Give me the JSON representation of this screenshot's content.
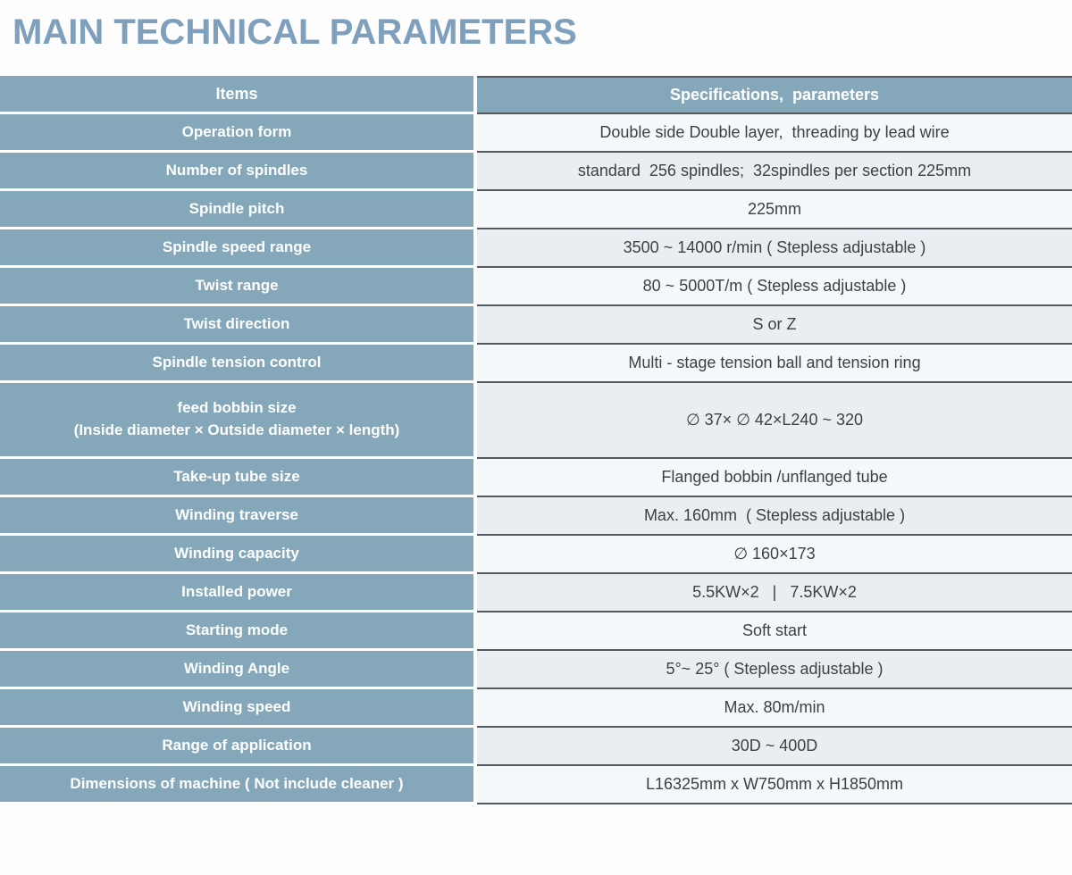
{
  "page": {
    "title": "MAIN TECHNICAL PARAMETERS"
  },
  "colors": {
    "title_text": "#7fa0bc",
    "header_cell_blue": "#84a8b9",
    "item_cell_blue": "#84a8b9",
    "value_row_light": "#f5f8fa",
    "value_row_dark": "#e8eef1",
    "dark_divider": "#53595e",
    "item_text": "#ffffff",
    "value_text": "#3c4146",
    "row_gap_white": "#ffffff"
  },
  "table": {
    "header": {
      "items": "Items",
      "specifications": "Specifications,  parameters"
    },
    "rows": [
      {
        "item": "Operation form",
        "value": "Double side Double layer,  threading by lead wire"
      },
      {
        "item": "Number of spindles",
        "value": "standard  256 spindles;  32spindles per section 225mm"
      },
      {
        "item": "Spindle pitch",
        "value": "225mm"
      },
      {
        "item": "Spindle speed range",
        "value": "3500 ~ 14000 r/min ( Stepless adjustable )"
      },
      {
        "item": "Twist range",
        "value": "80 ~ 5000T/m ( Stepless adjustable )"
      },
      {
        "item": "Twist direction",
        "value": "S or Z"
      },
      {
        "item": "Spindle tension control",
        "value": "Multi - stage tension ball and tension ring"
      },
      {
        "item": "feed bobbin size",
        "item_line2": "(Inside diameter × Outside diameter × length)",
        "value": "∅ 37× ∅ 42×L240 ~ 320",
        "tall": true
      },
      {
        "item": "Take-up tube size",
        "value": "Flanged bobbin /unflanged tube"
      },
      {
        "item": "Winding traverse",
        "value": "Max. 160mm  ( Stepless adjustable )"
      },
      {
        "item": "Winding capacity",
        "value": "∅ 160×173"
      },
      {
        "item": "Installed power",
        "value": "5.5KW×2   |   7.5KW×2"
      },
      {
        "item": "Starting mode",
        "value": "Soft start"
      },
      {
        "item": "Winding Angle",
        "value": "5°~ 25° ( Stepless adjustable )"
      },
      {
        "item": "Winding speed",
        "value": "Max. 80m/min"
      },
      {
        "item": "Range of application",
        "value": "30D ~ 400D"
      },
      {
        "item": "Dimensions of machine ( Not include cleaner )",
        "value": "L16325mm x W750mm x H1850mm"
      }
    ]
  }
}
